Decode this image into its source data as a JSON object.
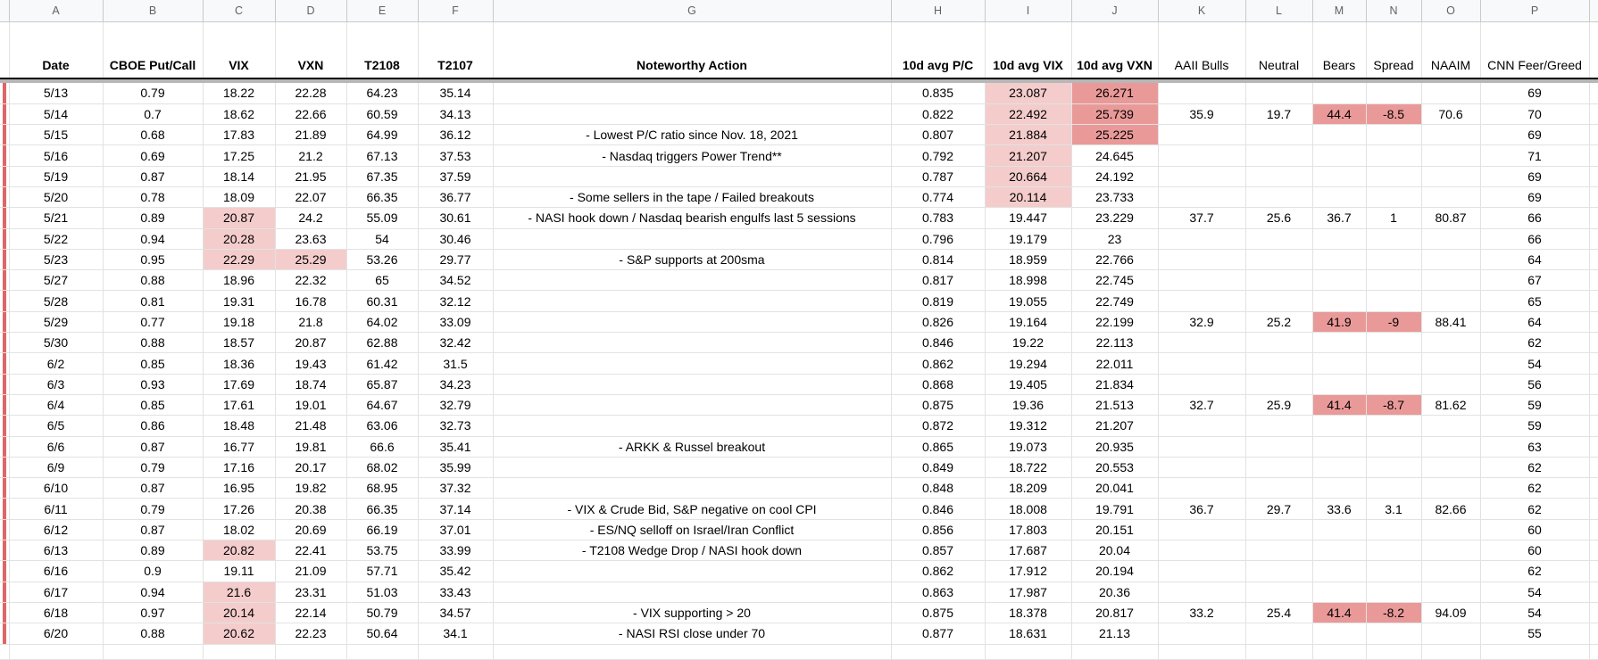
{
  "app": "spreadsheet",
  "column_letters": [
    "A",
    "B",
    "C",
    "D",
    "E",
    "F",
    "G",
    "H",
    "I",
    "J",
    "K",
    "L",
    "M",
    "N",
    "O",
    "P"
  ],
  "headers": [
    "Date",
    "CBOE Put/Call",
    "VIX",
    "VXN",
    "T2108",
    "T2107",
    "Noteworthy Action",
    "10d avg P/C",
    "10d avg VIX",
    "10d avg VXN",
    "AAII Bulls",
    "Neutral",
    "Bears",
    "Spread",
    "NAAIM",
    "CNN Feer/Greed"
  ],
  "colors": {
    "highlight_pink": "#f4cccc",
    "highlight_salmon": "#ea9999",
    "gutter_red": "#e06666",
    "frozen_band_gray": "#b7b7b7",
    "gridline": "#e2e2e2"
  },
  "rows": [
    {
      "date": "5/13",
      "pc": "0.79",
      "vix": "18.22",
      "vxn": "22.28",
      "t2108": "64.23",
      "t2107": "35.14",
      "note": "",
      "avg_pc": "0.835",
      "avg_vix": "23.087",
      "avg_vxn": "26.271",
      "aaii": "",
      "neutral": "",
      "bears": "",
      "spread": "",
      "naaim": "",
      "cnn": "69",
      "hl": {
        "avg_vix": "pink",
        "avg_vxn": "salmon"
      }
    },
    {
      "date": "5/14",
      "pc": "0.7",
      "vix": "18.62",
      "vxn": "22.66",
      "t2108": "60.59",
      "t2107": "34.13",
      "note": "",
      "avg_pc": "0.822",
      "avg_vix": "22.492",
      "avg_vxn": "25.739",
      "aaii": "35.9",
      "neutral": "19.7",
      "bears": "44.4",
      "spread": "-8.5",
      "naaim": "70.6",
      "cnn": "70",
      "hl": {
        "avg_vix": "pink",
        "avg_vxn": "salmon",
        "bears": "salmon",
        "spread": "salmon"
      }
    },
    {
      "date": "5/15",
      "pc": "0.68",
      "vix": "17.83",
      "vxn": "21.89",
      "t2108": "64.99",
      "t2107": "36.12",
      "note": "- Lowest P/C ratio since Nov. 18, 2021",
      "avg_pc": "0.807",
      "avg_vix": "21.884",
      "avg_vxn": "25.225",
      "aaii": "",
      "neutral": "",
      "bears": "",
      "spread": "",
      "naaim": "",
      "cnn": "69",
      "hl": {
        "avg_vix": "pink",
        "avg_vxn": "salmon"
      }
    },
    {
      "date": "5/16",
      "pc": "0.69",
      "vix": "17.25",
      "vxn": "21.2",
      "t2108": "67.13",
      "t2107": "37.53",
      "note": "- Nasdaq triggers Power Trend**",
      "avg_pc": "0.792",
      "avg_vix": "21.207",
      "avg_vxn": "24.645",
      "aaii": "",
      "neutral": "",
      "bears": "",
      "spread": "",
      "naaim": "",
      "cnn": "71",
      "hl": {
        "avg_vix": "pink"
      }
    },
    {
      "date": "5/19",
      "pc": "0.87",
      "vix": "18.14",
      "vxn": "21.95",
      "t2108": "67.35",
      "t2107": "37.59",
      "note": "",
      "avg_pc": "0.787",
      "avg_vix": "20.664",
      "avg_vxn": "24.192",
      "aaii": "",
      "neutral": "",
      "bears": "",
      "spread": "",
      "naaim": "",
      "cnn": "69",
      "hl": {
        "avg_vix": "pink"
      }
    },
    {
      "date": "5/20",
      "pc": "0.78",
      "vix": "18.09",
      "vxn": "22.07",
      "t2108": "66.35",
      "t2107": "36.77",
      "note": "- Some sellers in the tape / Failed breakouts",
      "avg_pc": "0.774",
      "avg_vix": "20.114",
      "avg_vxn": "23.733",
      "aaii": "",
      "neutral": "",
      "bears": "",
      "spread": "",
      "naaim": "",
      "cnn": "69",
      "hl": {
        "avg_vix": "pink"
      }
    },
    {
      "date": "5/21",
      "pc": "0.89",
      "vix": "20.87",
      "vxn": "24.2",
      "t2108": "55.09",
      "t2107": "30.61",
      "note": "- NASI hook down / Nasdaq bearish engulfs last 5 sessions",
      "avg_pc": "0.783",
      "avg_vix": "19.447",
      "avg_vxn": "23.229",
      "aaii": "37.7",
      "neutral": "25.6",
      "bears": "36.7",
      "spread": "1",
      "naaim": "80.87",
      "cnn": "66",
      "hl": {
        "vix": "pink"
      }
    },
    {
      "date": "5/22",
      "pc": "0.94",
      "vix": "20.28",
      "vxn": "23.63",
      "t2108": "54",
      "t2107": "30.46",
      "note": "",
      "avg_pc": "0.796",
      "avg_vix": "19.179",
      "avg_vxn": "23",
      "aaii": "",
      "neutral": "",
      "bears": "",
      "spread": "",
      "naaim": "",
      "cnn": "66",
      "hl": {
        "vix": "pink"
      }
    },
    {
      "date": "5/23",
      "pc": "0.95",
      "vix": "22.29",
      "vxn": "25.29",
      "t2108": "53.26",
      "t2107": "29.77",
      "note": "- S&P supports at 200sma",
      "avg_pc": "0.814",
      "avg_vix": "18.959",
      "avg_vxn": "22.766",
      "aaii": "",
      "neutral": "",
      "bears": "",
      "spread": "",
      "naaim": "",
      "cnn": "64",
      "hl": {
        "vix": "pink",
        "vxn": "pink"
      }
    },
    {
      "date": "5/27",
      "pc": "0.88",
      "vix": "18.96",
      "vxn": "22.32",
      "t2108": "65",
      "t2107": "34.52",
      "note": "",
      "avg_pc": "0.817",
      "avg_vix": "18.998",
      "avg_vxn": "22.745",
      "aaii": "",
      "neutral": "",
      "bears": "",
      "spread": "",
      "naaim": "",
      "cnn": "67",
      "hl": {}
    },
    {
      "date": "5/28",
      "pc": "0.81",
      "vix": "19.31",
      "vxn": "16.78",
      "t2108": "60.31",
      "t2107": "32.12",
      "note": "",
      "avg_pc": "0.819",
      "avg_vix": "19.055",
      "avg_vxn": "22.749",
      "aaii": "",
      "neutral": "",
      "bears": "",
      "spread": "",
      "naaim": "",
      "cnn": "65",
      "hl": {}
    },
    {
      "date": "5/29",
      "pc": "0.77",
      "vix": "19.18",
      "vxn": "21.8",
      "t2108": "64.02",
      "t2107": "33.09",
      "note": "",
      "avg_pc": "0.826",
      "avg_vix": "19.164",
      "avg_vxn": "22.199",
      "aaii": "32.9",
      "neutral": "25.2",
      "bears": "41.9",
      "spread": "-9",
      "naaim": "88.41",
      "cnn": "64",
      "hl": {
        "bears": "salmon",
        "spread": "salmon"
      }
    },
    {
      "date": "5/30",
      "pc": "0.88",
      "vix": "18.57",
      "vxn": "20.87",
      "t2108": "62.88",
      "t2107": "32.42",
      "note": "",
      "avg_pc": "0.846",
      "avg_vix": "19.22",
      "avg_vxn": "22.113",
      "aaii": "",
      "neutral": "",
      "bears": "",
      "spread": "",
      "naaim": "",
      "cnn": "62",
      "hl": {}
    },
    {
      "date": "6/2",
      "pc": "0.85",
      "vix": "18.36",
      "vxn": "19.43",
      "t2108": "61.42",
      "t2107": "31.5",
      "note": "",
      "avg_pc": "0.862",
      "avg_vix": "19.294",
      "avg_vxn": "22.011",
      "aaii": "",
      "neutral": "",
      "bears": "",
      "spread": "",
      "naaim": "",
      "cnn": "54",
      "hl": {}
    },
    {
      "date": "6/3",
      "pc": "0.93",
      "vix": "17.69",
      "vxn": "18.74",
      "t2108": "65.87",
      "t2107": "34.23",
      "note": "",
      "avg_pc": "0.868",
      "avg_vix": "19.405",
      "avg_vxn": "21.834",
      "aaii": "",
      "neutral": "",
      "bears": "",
      "spread": "",
      "naaim": "",
      "cnn": "56",
      "hl": {}
    },
    {
      "date": "6/4",
      "pc": "0.85",
      "vix": "17.61",
      "vxn": "19.01",
      "t2108": "64.67",
      "t2107": "32.79",
      "note": "",
      "avg_pc": "0.875",
      "avg_vix": "19.36",
      "avg_vxn": "21.513",
      "aaii": "32.7",
      "neutral": "25.9",
      "bears": "41.4",
      "spread": "-8.7",
      "naaim": "81.62",
      "cnn": "59",
      "hl": {
        "bears": "salmon",
        "spread": "salmon"
      }
    },
    {
      "date": "6/5",
      "pc": "0.86",
      "vix": "18.48",
      "vxn": "21.48",
      "t2108": "63.06",
      "t2107": "32.73",
      "note": "",
      "avg_pc": "0.872",
      "avg_vix": "19.312",
      "avg_vxn": "21.207",
      "aaii": "",
      "neutral": "",
      "bears": "",
      "spread": "",
      "naaim": "",
      "cnn": "59",
      "hl": {}
    },
    {
      "date": "6/6",
      "pc": "0.87",
      "vix": "16.77",
      "vxn": "19.81",
      "t2108": "66.6",
      "t2107": "35.41",
      "note": "- ARKK & Russel breakout",
      "avg_pc": "0.865",
      "avg_vix": "19.073",
      "avg_vxn": "20.935",
      "aaii": "",
      "neutral": "",
      "bears": "",
      "spread": "",
      "naaim": "",
      "cnn": "63",
      "hl": {}
    },
    {
      "date": "6/9",
      "pc": "0.79",
      "vix": "17.16",
      "vxn": "20.17",
      "t2108": "68.02",
      "t2107": "35.99",
      "note": "",
      "avg_pc": "0.849",
      "avg_vix": "18.722",
      "avg_vxn": "20.553",
      "aaii": "",
      "neutral": "",
      "bears": "",
      "spread": "",
      "naaim": "",
      "cnn": "62",
      "hl": {}
    },
    {
      "date": "6/10",
      "pc": "0.87",
      "vix": "16.95",
      "vxn": "19.82",
      "t2108": "68.95",
      "t2107": "37.32",
      "note": "",
      "avg_pc": "0.848",
      "avg_vix": "18.209",
      "avg_vxn": "20.041",
      "aaii": "",
      "neutral": "",
      "bears": "",
      "spread": "",
      "naaim": "",
      "cnn": "62",
      "hl": {}
    },
    {
      "date": "6/11",
      "pc": "0.79",
      "vix": "17.26",
      "vxn": "20.38",
      "t2108": "66.35",
      "t2107": "37.14",
      "note": "- VIX & Crude Bid, S&P negative on cool CPI",
      "avg_pc": "0.846",
      "avg_vix": "18.008",
      "avg_vxn": "19.791",
      "aaii": "36.7",
      "neutral": "29.7",
      "bears": "33.6",
      "spread": "3.1",
      "naaim": "82.66",
      "cnn": "62",
      "hl": {}
    },
    {
      "date": "6/12",
      "pc": "0.87",
      "vix": "18.02",
      "vxn": "20.69",
      "t2108": "66.19",
      "t2107": "37.01",
      "note": "- ES/NQ selloff on Israel/Iran Conflict",
      "avg_pc": "0.856",
      "avg_vix": "17.803",
      "avg_vxn": "20.151",
      "aaii": "",
      "neutral": "",
      "bears": "",
      "spread": "",
      "naaim": "",
      "cnn": "60",
      "hl": {}
    },
    {
      "date": "6/13",
      "pc": "0.89",
      "vix": "20.82",
      "vxn": "22.41",
      "t2108": "53.75",
      "t2107": "33.99",
      "note": "- T2108 Wedge Drop / NASI hook down",
      "avg_pc": "0.857",
      "avg_vix": "17.687",
      "avg_vxn": "20.04",
      "aaii": "",
      "neutral": "",
      "bears": "",
      "spread": "",
      "naaim": "",
      "cnn": "60",
      "hl": {
        "vix": "pink"
      }
    },
    {
      "date": "6/16",
      "pc": "0.9",
      "vix": "19.11",
      "vxn": "21.09",
      "t2108": "57.71",
      "t2107": "35.42",
      "note": "",
      "avg_pc": "0.862",
      "avg_vix": "17.912",
      "avg_vxn": "20.194",
      "aaii": "",
      "neutral": "",
      "bears": "",
      "spread": "",
      "naaim": "",
      "cnn": "62",
      "hl": {}
    },
    {
      "date": "6/17",
      "pc": "0.94",
      "vix": "21.6",
      "vxn": "23.31",
      "t2108": "51.03",
      "t2107": "33.43",
      "note": "",
      "avg_pc": "0.863",
      "avg_vix": "17.987",
      "avg_vxn": "20.36",
      "aaii": "",
      "neutral": "",
      "bears": "",
      "spread": "",
      "naaim": "",
      "cnn": "54",
      "hl": {
        "vix": "pink"
      }
    },
    {
      "date": "6/18",
      "pc": "0.97",
      "vix": "20.14",
      "vxn": "22.14",
      "t2108": "50.79",
      "t2107": "34.57",
      "note": "- VIX supporting > 20",
      "avg_pc": "0.875",
      "avg_vix": "18.378",
      "avg_vxn": "20.817",
      "aaii": "33.2",
      "neutral": "25.4",
      "bears": "41.4",
      "spread": "-8.2",
      "naaim": "94.09",
      "cnn": "54",
      "hl": {
        "vix": "pink",
        "bears": "salmon",
        "spread": "salmon"
      }
    },
    {
      "date": "6/20",
      "pc": "0.88",
      "vix": "20.62",
      "vxn": "22.23",
      "t2108": "50.64",
      "t2107": "34.1",
      "note": "- NASI RSI close under 70",
      "avg_pc": "0.877",
      "avg_vix": "18.631",
      "avg_vxn": "21.13",
      "aaii": "",
      "neutral": "",
      "bears": "",
      "spread": "",
      "naaim": "",
      "cnn": "55",
      "hl": {
        "vix": "pink"
      }
    }
  ]
}
